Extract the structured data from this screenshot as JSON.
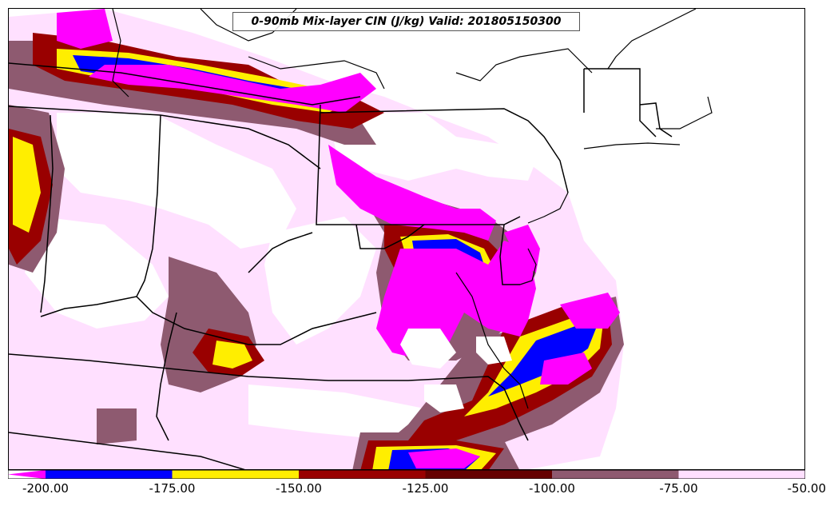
{
  "title": "0-90mb Mix-layer CIN (J/kg) Valid: 201805150300",
  "colorbar": {
    "ticks": [
      "-200.00",
      "-175.00",
      "-150.00",
      "-125.00",
      "-100.00",
      "-75.00",
      "-50.00"
    ],
    "bins": [
      {
        "from": -200,
        "to": -175,
        "color": "#0000ff"
      },
      {
        "from": -175,
        "to": -150,
        "color": "#ffee00"
      },
      {
        "from": -150,
        "to": -125,
        "color": "#990000"
      },
      {
        "from": -125,
        "to": -100,
        "color": "#660000"
      },
      {
        "from": -100,
        "to": -75,
        "color": "#8e5a70"
      },
      {
        "from": -75,
        "to": -50,
        "color": "#ffe0ff"
      }
    ],
    "under_color": "#ff00ff",
    "min": -200,
    "max": -50
  },
  "colors": {
    "very_low": "#ff00ff",
    "blue": "#0000ff",
    "yellow": "#ffee00",
    "dark_red": "#990000",
    "maroon": "#660000",
    "mauve": "#8e5a70",
    "light_pink": "#ffe0ff",
    "borders": "#000000"
  }
}
